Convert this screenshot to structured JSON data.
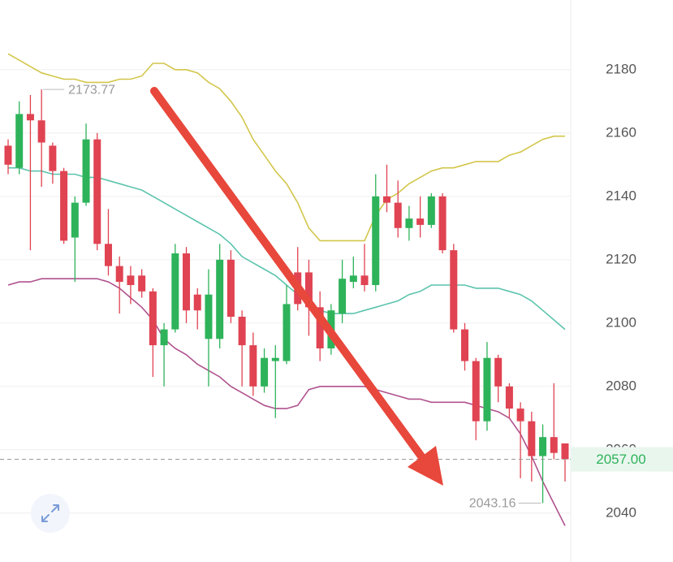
{
  "chart_data": {
    "type": "candlestick",
    "open": [
      2156,
      2149,
      2166,
      2164,
      2156,
      2148,
      2127,
      2138,
      2158,
      2125,
      2118,
      2115,
      2115,
      2110,
      2093,
      2098,
      2122,
      2109,
      2095,
      2095,
      2120,
      2102,
      2093,
      2080,
      2088,
      2088,
      2116,
      2116,
      2105,
      2092,
      2103,
      2113,
      2115,
      2112,
      2140,
      2138,
      2130,
      2133,
      2131,
      2140,
      2123,
      2098,
      2088,
      2069,
      2089,
      2080,
      2073,
      2069,
      2058,
      2064,
      2062
    ],
    "high": [
      2158,
      2170,
      2172,
      2173.77,
      2157,
      2149,
      2140,
      2163,
      2160,
      2136,
      2121,
      2118,
      2117,
      2111,
      2100,
      2125,
      2124,
      2111,
      2117,
      2125,
      2123,
      2104,
      2097,
      2092,
      2093,
      2112,
      2124,
      2120,
      2110,
      2106,
      2120,
      2121,
      2125,
      2147,
      2150,
      2145,
      2137,
      2140,
      2141,
      2141,
      2125,
      2100,
      2089,
      2094,
      2090,
      2081,
      2075,
      2072,
      2068,
      2081,
      2062
    ],
    "low": [
      2147,
      2147,
      2123,
      2143,
      2144,
      2125,
      2113,
      2137,
      2123,
      2115,
      2103,
      2106,
      2108,
      2083,
      2080,
      2097,
      2100,
      2098,
      2080,
      2092,
      2100,
      2080,
      2077,
      2078,
      2070,
      2087,
      2104,
      2096,
      2088,
      2090,
      2100,
      2111,
      2110,
      2110,
      2135,
      2127,
      2126,
      2127,
      2130,
      2122,
      2097,
      2085,
      2063,
      2066,
      2075,
      2070,
      2051,
      2050,
      2043.16,
      2057,
      2050
    ],
    "close": [
      2150,
      2166,
      2164,
      2157,
      2148,
      2126,
      2138,
      2158,
      2125,
      2118,
      2113,
      2112,
      2110,
      2093,
      2098,
      2122,
      2104,
      2104,
      2109,
      2120,
      2102,
      2093,
      2080,
      2089,
      2089,
      2106,
      2106,
      2105,
      2092,
      2104,
      2114,
      2115,
      2112,
      2140,
      2138,
      2130,
      2133,
      2131,
      2140,
      2123,
      2098,
      2088,
      2069,
      2089,
      2080,
      2073,
      2069,
      2058,
      2064,
      2059,
      2057
    ],
    "up_color": "#2eb35a",
    "down_color": "#e04352",
    "bands": [
      {
        "color": "#d2c64a",
        "values": [
          2185,
          2183,
          2181,
          2179,
          2178,
          2177,
          2177,
          2176,
          2176,
          2176,
          2177,
          2177,
          2178,
          2182,
          2182,
          2180,
          2180,
          2179,
          2176,
          2174,
          2170,
          2165,
          2158,
          2153,
          2148,
          2144,
          2138,
          2130,
          2126,
          2126,
          2126,
          2126,
          2126,
          2134,
          2139,
          2141,
          2144,
          2146,
          2148,
          2149,
          2149,
          2150,
          2151,
          2151,
          2151,
          2153,
          2154,
          2156,
          2158,
          2159,
          2159
        ]
      },
      {
        "color": "#5cc4ad",
        "values": [
          2149,
          2149,
          2148,
          2148,
          2147,
          2147,
          2147,
          2146,
          2146,
          2145,
          2144,
          2143,
          2142,
          2140,
          2138,
          2136,
          2134,
          2132,
          2130,
          2128,
          2125,
          2121,
          2119,
          2117,
          2115,
          2112,
          2109,
          2106,
          2104,
          2103,
          2103,
          2103,
          2104,
          2105,
          2106,
          2107,
          2109,
          2110,
          2112,
          2112,
          2112,
          2112,
          2111,
          2111,
          2111,
          2110,
          2109,
          2107,
          2104,
          2101,
          2098
        ]
      },
      {
        "color": "#b0528e",
        "values": [
          2112,
          2113,
          2113,
          2114,
          2114,
          2114,
          2114,
          2114,
          2114,
          2113,
          2111,
          2108,
          2105,
          2101,
          2095,
          2092,
          2090,
          2087,
          2085,
          2083,
          2080,
          2078,
          2076,
          2074,
          2073,
          2073,
          2074,
          2079,
          2080,
          2080,
          2080,
          2080,
          2080,
          2079,
          2078,
          2077,
          2076,
          2076,
          2075,
          2075,
          2075,
          2075,
          2074,
          2073,
          2072,
          2070,
          2065,
          2058,
          2050,
          2043,
          2036
        ]
      }
    ],
    "ylim": [
      2026,
      2202
    ],
    "yticks": [
      2040,
      2060,
      2080,
      2100,
      2120,
      2140,
      2160,
      2180
    ],
    "grid": true,
    "last_price": {
      "value": 2057,
      "label": "2057.00"
    }
  }
}
